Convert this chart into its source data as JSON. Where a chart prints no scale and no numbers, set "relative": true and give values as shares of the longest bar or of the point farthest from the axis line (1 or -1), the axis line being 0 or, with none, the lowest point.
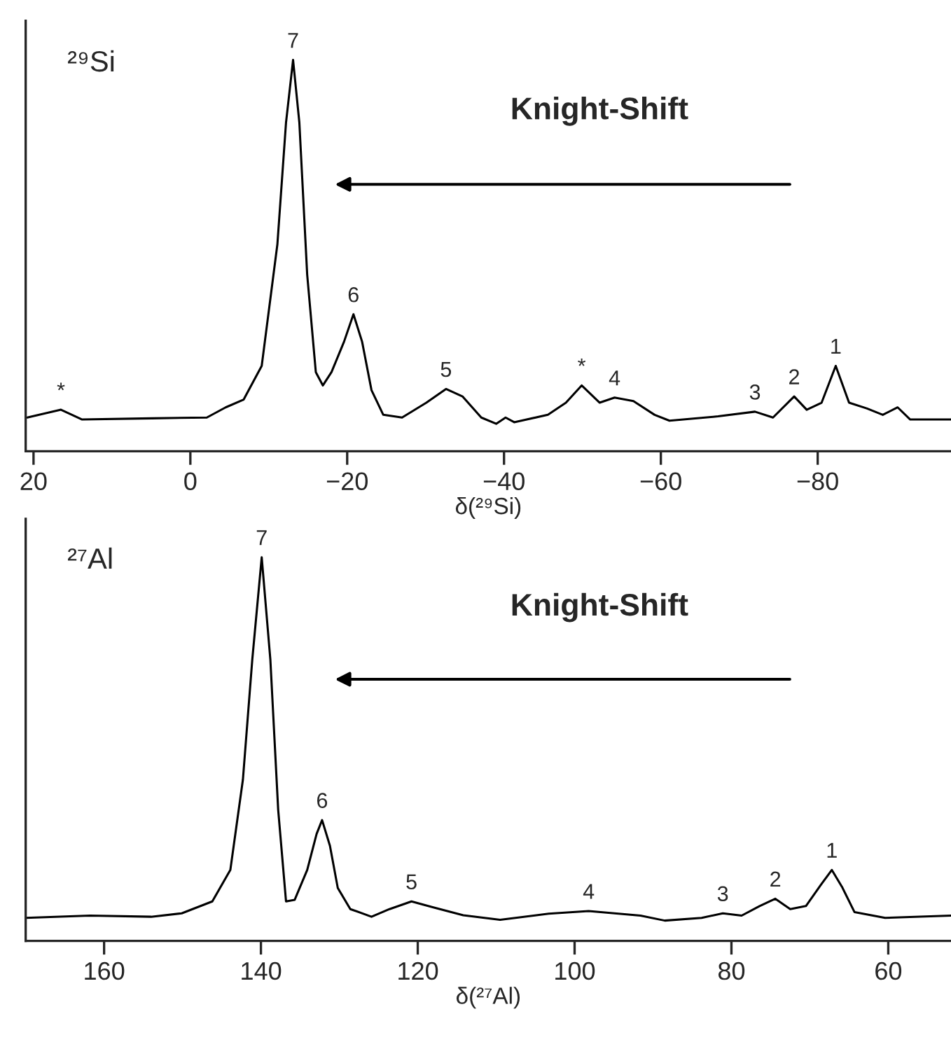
{
  "chart_data": [
    {
      "type": "line",
      "relative": true,
      "xlabel": "δ(²⁹Si)",
      "xlim": [
        21,
        -97
      ],
      "xticks": [
        20,
        0,
        {
          "value": -20,
          "label": "−20"
        },
        {
          "value": -40,
          "label": "−40"
        },
        {
          "value": -60,
          "label": "−60"
        },
        {
          "value": -80,
          "label": "−80"
        }
      ],
      "tick_labels": "x",
      "grid": false,
      "legend": false,
      "marker": "none",
      "line_style": "solid",
      "series": [
        {
          "color": "#000000",
          "x": [
            20.8,
            16.5,
            13.8,
            4.9,
            -2.1,
            -4.5,
            -6.8,
            -9.1,
            -11.1,
            -12.2,
            -13.1,
            -13.9,
            -14.9,
            -16.0,
            -16.9,
            -18.0,
            -19.6,
            -20.8,
            -21.9,
            -23.1,
            -24.6,
            -27.0,
            -30.1,
            -32.6,
            -34.7,
            -37.1,
            -39.0,
            -40.2,
            -41.3,
            -45.6,
            -47.9,
            -49.9,
            -52.2,
            -54.1,
            -56.5,
            -59.2,
            -61.1,
            -67.3,
            -72.0,
            -74.3,
            -77.0,
            -78.6,
            -80.5,
            -82.3,
            -84.0,
            -86.3,
            -88.3,
            -90.2,
            -91.8,
            -97.0
          ],
          "values": [
            0.086,
            0.106,
            0.081,
            0.084,
            0.086,
            0.112,
            0.132,
            0.218,
            0.529,
            0.84,
            1.0,
            0.84,
            0.451,
            0.202,
            0.168,
            0.202,
            0.28,
            0.35,
            0.28,
            0.156,
            0.093,
            0.086,
            0.124,
            0.159,
            0.14,
            0.086,
            0.07,
            0.086,
            0.074,
            0.093,
            0.124,
            0.168,
            0.124,
            0.137,
            0.128,
            0.093,
            0.078,
            0.089,
            0.101,
            0.086,
            0.14,
            0.106,
            0.124,
            0.218,
            0.124,
            0.109,
            0.093,
            0.112,
            0.081,
            0.081
          ]
        }
      ],
      "annotations": [
        "²⁹Si",
        "Knight-Shift",
        {
          "text": "7",
          "x": -13.1,
          "y": 1.0
        },
        {
          "text": "6",
          "x": -20.8,
          "y": 0.35
        },
        {
          "text": "5",
          "x": -32.6,
          "y": 0.159
        },
        {
          "text": "*",
          "x": 16.5,
          "y": 0.106
        },
        {
          "text": "*",
          "x": -49.9,
          "y": 0.168
        },
        {
          "text": "4",
          "x": -54.1,
          "y": 0.137
        },
        {
          "text": "3",
          "x": -72.0,
          "y": 0.101
        },
        {
          "text": "2",
          "x": -77.0,
          "y": 0.14
        },
        {
          "text": "1",
          "x": -82.3,
          "y": 0.218
        }
      ]
    },
    {
      "type": "line",
      "relative": true,
      "xlabel": "δ(²⁷Al)",
      "xlim": [
        170,
        52
      ],
      "xticks": [
        160,
        140,
        120,
        100,
        80,
        60
      ],
      "tick_labels": "x",
      "grid": false,
      "legend": false,
      "marker": "none",
      "line_style": "solid",
      "series": [
        {
          "color": "#000000",
          "x": [
            170.0,
            161.8,
            154.0,
            150.1,
            146.2,
            143.9,
            142.3,
            141.1,
            139.9,
            138.8,
            137.8,
            136.8,
            135.7,
            134.1,
            132.9,
            132.2,
            131.2,
            130.2,
            128.6,
            125.9,
            123.6,
            120.8,
            118.1,
            114.2,
            109.5,
            103.3,
            98.2,
            91.6,
            88.5,
            83.8,
            81.1,
            78.7,
            76.4,
            74.4,
            72.5,
            70.5,
            68.6,
            67.2,
            65.9,
            64.3,
            60.4,
            52.0
          ],
          "values": [
            0.06,
            0.066,
            0.063,
            0.072,
            0.103,
            0.185,
            0.42,
            0.734,
            1.0,
            0.734,
            0.342,
            0.103,
            0.107,
            0.185,
            0.279,
            0.315,
            0.248,
            0.138,
            0.083,
            0.063,
            0.083,
            0.103,
            0.088,
            0.067,
            0.055,
            0.071,
            0.078,
            0.066,
            0.053,
            0.06,
            0.072,
            0.066,
            0.091,
            0.11,
            0.083,
            0.091,
            0.146,
            0.185,
            0.141,
            0.075,
            0.06,
            0.066
          ]
        }
      ],
      "annotations": [
        "²⁷Al",
        "Knight-Shift",
        {
          "text": "7",
          "x": 139.9,
          "y": 1.0
        },
        {
          "text": "6",
          "x": 132.2,
          "y": 0.315
        },
        {
          "text": "5",
          "x": 120.8,
          "y": 0.103
        },
        {
          "text": "4",
          "x": 98.2,
          "y": 0.078
        },
        {
          "text": "3",
          "x": 81.1,
          "y": 0.072
        },
        {
          "text": "2",
          "x": 74.4,
          "y": 0.11
        },
        {
          "text": "1",
          "x": 67.2,
          "y": 0.185
        }
      ]
    }
  ]
}
